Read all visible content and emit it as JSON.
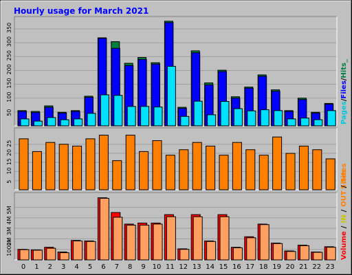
{
  "title": "Hourly usage for March 2021",
  "legend": {
    "pages": "Pages",
    "files": "Files",
    "hits": "Hits",
    "sites": "Sites",
    "volume": "Volume",
    "in": "IN",
    "out": "OUT",
    "sep": "/",
    "under": "_"
  },
  "colors": {
    "frame": "#c0c0c0",
    "plot": "#c0c0c0",
    "title": "#0000ff",
    "hits": "#008040",
    "files": "#0000ff",
    "pages": "#00e0ff",
    "sites": "#ff8000",
    "volume": "#ff0000",
    "in": "#ffff00",
    "out": "#ffa060"
  },
  "chart_data": [
    {
      "type": "bar",
      "title": "Hourly usage for March 2021",
      "categories": [
        "0",
        "1",
        "2",
        "3",
        "4",
        "5",
        "6",
        "7",
        "8",
        "9",
        "10",
        "11",
        "12",
        "13",
        "14",
        "15",
        "16",
        "17",
        "18",
        "19",
        "20",
        "21",
        "22",
        "23"
      ],
      "yticks": [
        "50",
        "100",
        "150",
        "200",
        "250",
        "300",
        "350"
      ],
      "ylim": [
        0,
        395
      ],
      "grid": true,
      "series": [
        {
          "name": "Hits",
          "values": [
            55,
            52,
            72,
            49,
            55,
            107,
            318,
            304,
            226,
            247,
            228,
            378,
            67,
            271,
            155,
            201,
            105,
            140,
            184,
            130,
            55,
            100,
            49,
            81
          ]
        },
        {
          "name": "Files",
          "values": [
            52,
            48,
            67,
            46,
            52,
            103,
            316,
            280,
            218,
            240,
            223,
            373,
            63,
            264,
            148,
            196,
            100,
            136,
            179,
            125,
            52,
            95,
            46,
            78
          ]
        },
        {
          "name": "Pages",
          "values": [
            25,
            17,
            30,
            22,
            25,
            45,
            112,
            110,
            70,
            70,
            68,
            215,
            34,
            89,
            40,
            88,
            62,
            54,
            58,
            55,
            25,
            28,
            22,
            55
          ]
        }
      ]
    },
    {
      "type": "bar",
      "categories": [
        "0",
        "1",
        "2",
        "3",
        "4",
        "5",
        "6",
        "7",
        "8",
        "9",
        "10",
        "11",
        "12",
        "13",
        "14",
        "15",
        "16",
        "17",
        "18",
        "19",
        "20",
        "21",
        "22",
        "23"
      ],
      "yticks": [
        "5",
        "10",
        "15",
        "20",
        "25"
      ],
      "ylim": [
        0,
        34
      ],
      "grid": true,
      "series": [
        {
          "name": "Sites",
          "values": [
            28,
            21,
            26,
            25,
            24,
            28,
            30,
            16,
            30,
            21,
            27,
            19,
            22,
            26,
            24,
            19,
            26,
            22,
            19,
            29,
            20,
            24,
            22,
            17
          ]
        }
      ]
    },
    {
      "type": "bar",
      "categories": [
        "0",
        "1",
        "2",
        "3",
        "4",
        "5",
        "6",
        "7",
        "8",
        "9",
        "10",
        "11",
        "12",
        "13",
        "14",
        "15",
        "16",
        "17",
        "18",
        "19",
        "20",
        "21",
        "22",
        "23"
      ],
      "yticks": [
        "1000k",
        "2M",
        "3M",
        "4M",
        "5M"
      ],
      "ylim": [
        0,
        6.4
      ],
      "grid": true,
      "series": [
        {
          "name": "Volume",
          "values": [
            1.0,
            0.95,
            1.2,
            0.75,
            1.85,
            1.8,
            5.9,
            4.5,
            3.4,
            3.5,
            3.5,
            4.3,
            1.05,
            4.3,
            1.8,
            4.3,
            1.2,
            2.2,
            3.4,
            1.6,
            0.85,
            1.4,
            0.75,
            1.25
          ]
        },
        {
          "name": "OUT",
          "values": [
            0.97,
            0.92,
            1.1,
            0.68,
            1.8,
            1.75,
            5.85,
            4.05,
            3.3,
            3.3,
            3.4,
            4.1,
            1.0,
            4.1,
            1.75,
            4.1,
            1.15,
            2.1,
            3.35,
            1.55,
            0.8,
            1.35,
            0.72,
            1.2
          ]
        }
      ]
    }
  ]
}
